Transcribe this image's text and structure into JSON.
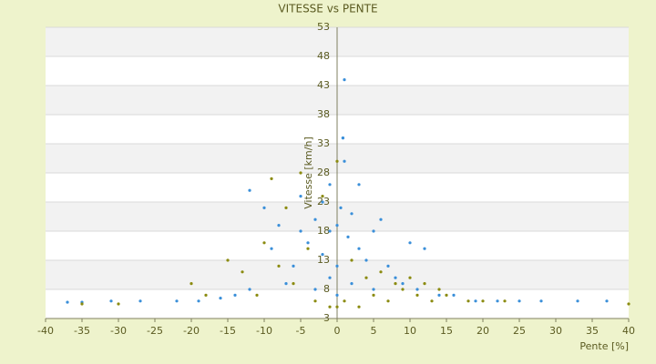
{
  "chart_data": {
    "type": "scatter",
    "title": "VITESSE vs PENTE",
    "x_label": "Pente [%]",
    "y_label": "Vitesse [km/h]",
    "xlim": [
      -40,
      40
    ],
    "xticks": [
      -40,
      -35,
      -30,
      -25,
      -20,
      -15,
      -10,
      -5,
      0,
      5,
      10,
      15,
      20,
      25,
      30,
      35,
      40
    ],
    "ylim": [
      3,
      53
    ],
    "yticks": [
      3,
      8,
      13,
      18,
      23,
      28,
      33,
      38,
      43,
      48,
      53
    ],
    "grid": true,
    "series": [
      {
        "color": "#3a8fd9",
        "x": [
          -37,
          -35,
          -31,
          -27,
          -22,
          -19,
          -16,
          -14,
          -12,
          -12,
          -10,
          -9,
          -8,
          -7,
          -6,
          -5,
          -5,
          -4,
          -3,
          -3,
          -2,
          -2,
          -1,
          -1,
          -1,
          0,
          0,
          0,
          0.5,
          1,
          1,
          1.5,
          2,
          2,
          3,
          3,
          4,
          5,
          5,
          6,
          7,
          8,
          9,
          10,
          11,
          12,
          14,
          16,
          19,
          22,
          25,
          28,
          33,
          37,
          0.8,
          0.8
        ],
        "values": [
          5.8,
          5.8,
          6,
          6,
          6,
          6,
          6.5,
          7,
          25,
          8,
          22,
          15,
          19,
          9,
          12,
          18,
          24,
          16,
          20,
          8,
          23,
          14,
          26,
          18,
          10,
          19,
          12,
          7,
          22,
          44,
          30,
          17,
          21,
          9,
          15,
          26,
          13,
          18,
          8,
          20,
          12,
          10,
          9,
          16,
          8,
          15,
          7,
          7,
          6,
          6,
          6,
          6,
          6,
          6,
          34,
          34
        ]
      },
      {
        "color": "#8b8b10",
        "x": [
          -35,
          -30,
          -20,
          -18,
          -15,
          -13,
          -11,
          -10,
          -9,
          -8,
          -7,
          -6,
          -5,
          -4,
          -3,
          -2,
          -1,
          0,
          0,
          1,
          2,
          3,
          4,
          5,
          6,
          7,
          8,
          9,
          10,
          11,
          12,
          13,
          14,
          15,
          18,
          20,
          23,
          40
        ],
        "values": [
          5.5,
          5.5,
          9,
          7,
          13,
          11,
          7,
          16,
          27,
          12,
          22,
          9,
          28,
          15,
          6,
          24,
          5,
          5,
          30,
          6,
          13,
          5,
          10,
          7,
          11,
          6,
          9,
          8,
          10,
          7,
          9,
          6,
          8,
          7,
          6,
          6,
          6,
          5.5
        ]
      }
    ]
  }
}
